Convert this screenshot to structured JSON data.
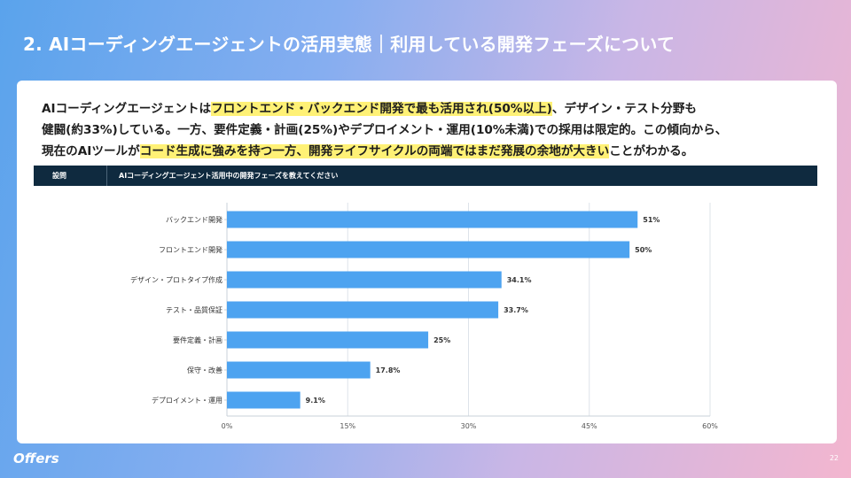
{
  "slide": {
    "title": "2. AIコーディングエージェントの活用実態｜利用している開発フェーズについて",
    "page_number": "22",
    "logo": "Offers"
  },
  "summary": {
    "line1": [
      {
        "text": "AIコーディングエージェントは",
        "hl": false
      },
      {
        "text": "フロントエンド・バックエンド開発で最も活用され(50%以上)",
        "hl": true
      },
      {
        "text": "、デザイン・テスト分野も",
        "hl": false
      }
    ],
    "line2": [
      {
        "text": "健闘(約33%)している。一方、要件定義・計画(25%)やデプロイメント・運用(10%未満)での採用は限定的。この傾向から、",
        "hl": false
      }
    ],
    "line3": [
      {
        "text": "現在のAIツールが",
        "hl": false
      },
      {
        "text": "コード生成に強みを持つ一方、開発ライフサイクルの両端ではまだ発展の余地が大きい",
        "hl": true
      },
      {
        "text": "ことがわかる。",
        "hl": false
      }
    ]
  },
  "question": {
    "label": "設問",
    "text": "AIコーディングエージェント活用中の開発フェーズを教えてください"
  },
  "colors": {
    "bar": "#4da3f0",
    "highlight": "#fff176",
    "header_bg": "#0f2a3f",
    "grid": "#dde3ea"
  },
  "chart_data": {
    "type": "bar",
    "orientation": "horizontal",
    "categories": [
      "バックエンド開発",
      "フロントエンド開発",
      "デザイン・プロトタイプ作成",
      "テスト・品質保証",
      "要件定義・計画",
      "保守・改善",
      "デプロイメント・運用"
    ],
    "values": [
      51,
      50,
      34.1,
      33.7,
      25,
      17.8,
      9.1
    ],
    "value_labels": [
      "51%",
      "50%",
      "34.1%",
      "33.7%",
      "25%",
      "17.8%",
      "9.1%"
    ],
    "xlim": [
      0,
      60
    ],
    "xticks": [
      0,
      15,
      30,
      45,
      60
    ],
    "xtick_labels": [
      "0%",
      "15%",
      "30%",
      "45%",
      "60%"
    ],
    "grid": true
  }
}
